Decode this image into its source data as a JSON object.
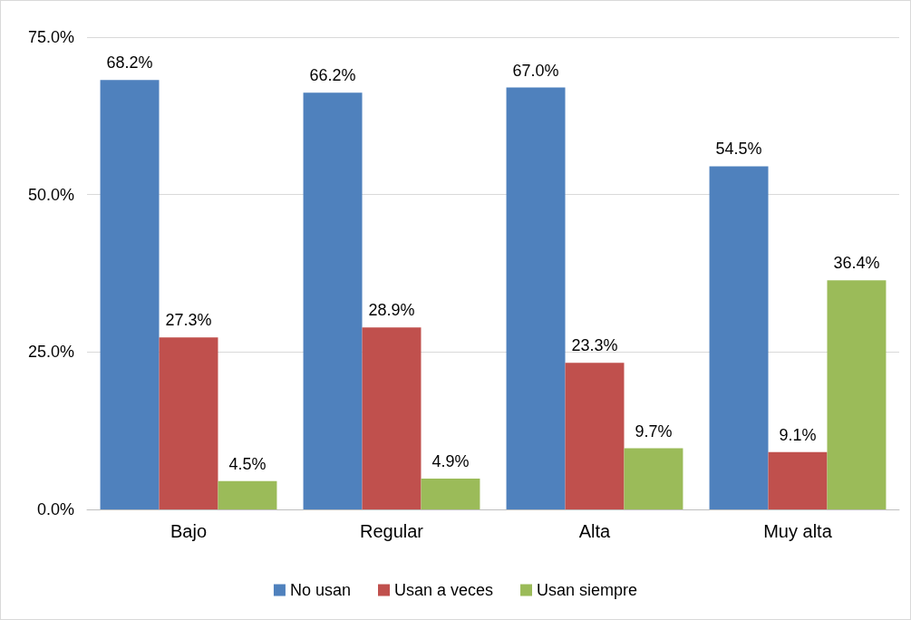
{
  "chart_data": {
    "type": "bar",
    "categories": [
      "Bajo",
      "Regular",
      "Alta",
      "Muy alta"
    ],
    "series": [
      {
        "name": "No usan",
        "color": "#4f81bd",
        "values": [
          68.2,
          66.2,
          67.0,
          54.5
        ],
        "value_labels": [
          "68.2%",
          "66.2%",
          "67.0%",
          "54.5%"
        ]
      },
      {
        "name": "Usan a veces",
        "color": "#c0504d",
        "values": [
          27.3,
          28.9,
          23.3,
          9.1
        ],
        "value_labels": [
          "27.3%",
          "28.9%",
          "23.3%",
          "9.1%"
        ]
      },
      {
        "name": "Usan siempre",
        "color": "#9bbb59",
        "values": [
          4.5,
          4.9,
          9.7,
          36.4
        ],
        "value_labels": [
          "4.5%",
          "4.9%",
          "9.7%",
          "36.4%"
        ]
      }
    ],
    "ylim": [
      0,
      75
    ],
    "yticks": [
      {
        "value": 0,
        "label": "0.0%"
      },
      {
        "value": 25,
        "label": "25.0%"
      },
      {
        "value": 50,
        "label": "50.0%"
      },
      {
        "value": 75,
        "label": "75.0%"
      }
    ],
    "grid": "y",
    "legend": "bottom"
  }
}
